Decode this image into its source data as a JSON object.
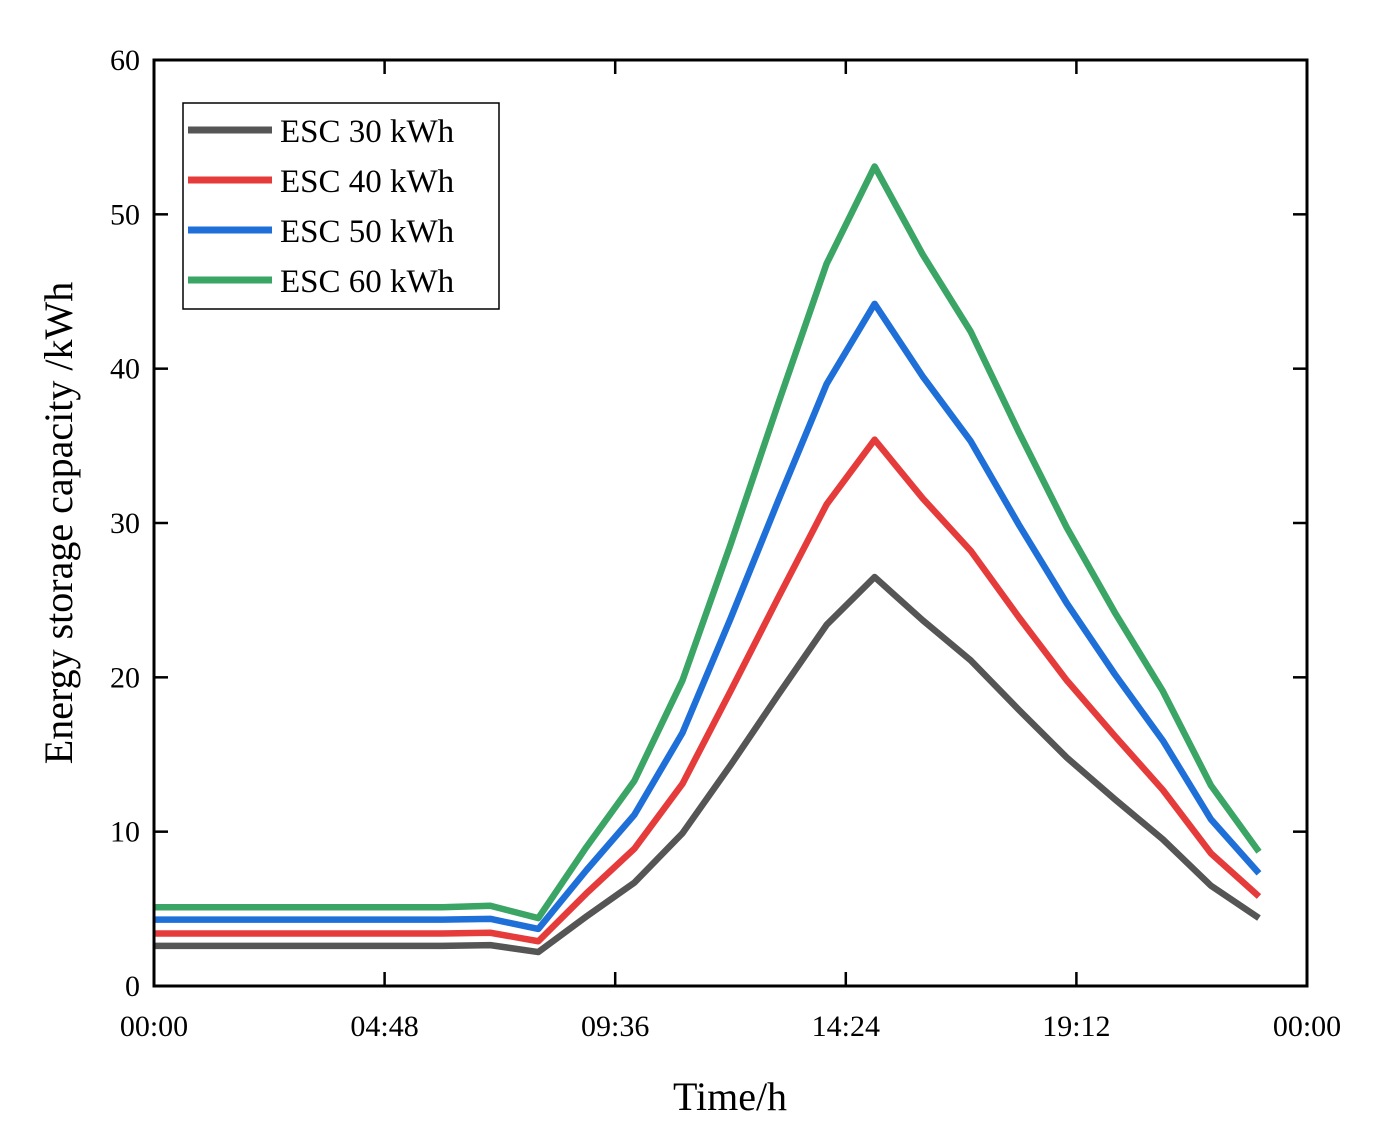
{
  "chart_data": {
    "type": "line",
    "title": "",
    "xlabel": "Time/h",
    "ylabel": "Energy storage capacity /kWh",
    "x_unit": "hours",
    "xlim": [
      0,
      24
    ],
    "ylim": [
      0,
      60
    ],
    "x_ticks": [
      0,
      4.8,
      9.6,
      14.4,
      19.2,
      24
    ],
    "x_tick_labels": [
      "00:00",
      "04:48",
      "09:36",
      "14:24",
      "19:12",
      "00:00"
    ],
    "y_ticks": [
      0,
      10,
      20,
      30,
      40,
      50,
      60
    ],
    "y_tick_labels": [
      "0",
      "10",
      "20",
      "30",
      "40",
      "50",
      "60"
    ],
    "legend_position": "top-left",
    "grid": false,
    "x": [
      0,
      1,
      2,
      3,
      4,
      5,
      6,
      7,
      8,
      9,
      10,
      11,
      12,
      13,
      14,
      15,
      16,
      17,
      18,
      19,
      20,
      21,
      22,
      23
    ],
    "series": [
      {
        "name": "ESC 30 kWh",
        "color": "#555555",
        "values": [
          2.6,
          2.6,
          2.6,
          2.6,
          2.6,
          2.6,
          2.6,
          2.65,
          2.2,
          4.5,
          6.7,
          9.9,
          14.3,
          18.9,
          23.4,
          26.5,
          23.7,
          21.1,
          17.9,
          14.8,
          12.1,
          9.5,
          6.5,
          4.4
        ]
      },
      {
        "name": "ESC 40 kWh",
        "color": "#e63b3b",
        "values": [
          3.4,
          3.4,
          3.4,
          3.4,
          3.4,
          3.4,
          3.4,
          3.45,
          2.9,
          6.0,
          8.9,
          13.1,
          19.1,
          25.2,
          31.2,
          35.4,
          31.6,
          28.2,
          23.9,
          19.8,
          16.2,
          12.7,
          8.6,
          5.8
        ]
      },
      {
        "name": "ESC 50 kWh",
        "color": "#1f6fd9",
        "values": [
          4.3,
          4.3,
          4.3,
          4.3,
          4.3,
          4.3,
          4.3,
          4.35,
          3.7,
          7.5,
          11.1,
          16.4,
          23.8,
          31.5,
          39.0,
          44.2,
          39.5,
          35.3,
          29.9,
          24.8,
          20.2,
          15.9,
          10.8,
          7.3
        ]
      },
      {
        "name": "ESC 60 kWh",
        "color": "#3aa564",
        "values": [
          5.1,
          5.1,
          5.1,
          5.1,
          5.1,
          5.1,
          5.1,
          5.2,
          4.4,
          9.0,
          13.3,
          19.8,
          28.6,
          37.8,
          46.8,
          53.1,
          47.4,
          42.4,
          35.9,
          29.7,
          24.2,
          19.1,
          13.0,
          8.7
        ]
      }
    ]
  }
}
